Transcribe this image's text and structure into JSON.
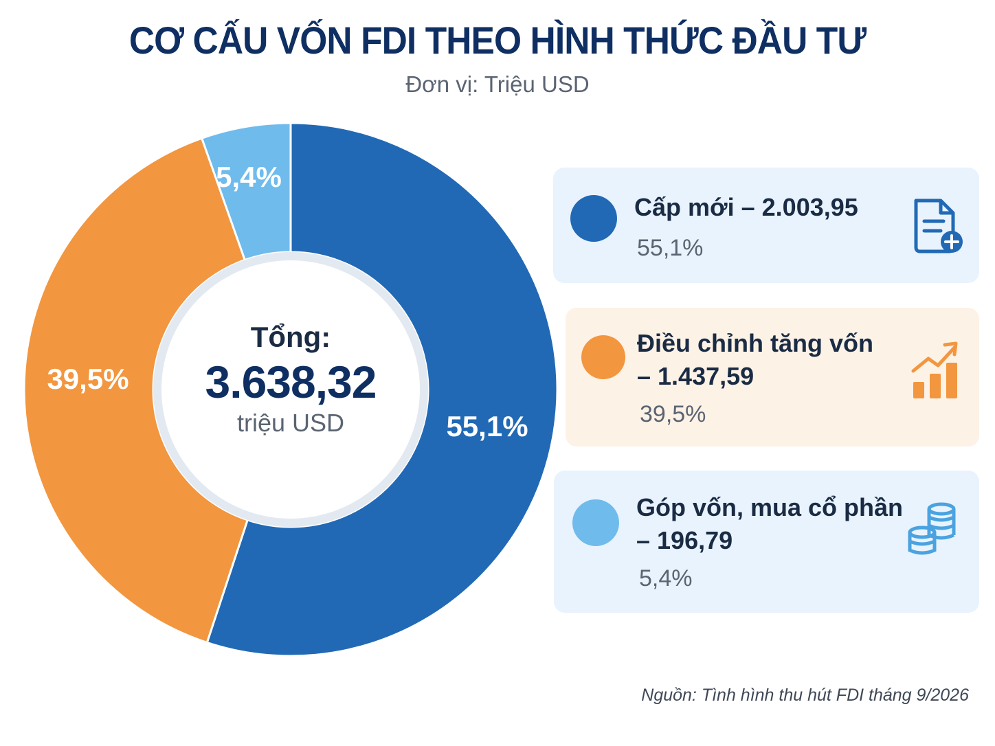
{
  "title": "CƠ CẤU VỐN FDI THEO HÌNH THỨC ĐẦU TƯ",
  "subtitle": "Đơn vị: Triệu USD",
  "center": {
    "label": "Tổng:",
    "value": "3.638,32",
    "unit": "triệu USD"
  },
  "chart_data": {
    "type": "pie",
    "variant": "donut",
    "title": "CƠ CẤU VỐN FDI THEO HÌNH THỨC ĐẦU TƯ",
    "unit": "Triệu USD",
    "total": 3638.32,
    "slices": [
      {
        "name": "Cấp mới",
        "value": 2003.95,
        "percent": 55.1,
        "percent_label": "55,1%",
        "color": "#2169b5"
      },
      {
        "name": "Điều chỉnh tăng vốn",
        "value": 1437.59,
        "percent": 39.5,
        "percent_label": "39,5%",
        "color": "#f2963f"
      },
      {
        "name": "Góp vốn, mua cổ phần",
        "value": 196.79,
        "percent": 5.4,
        "percent_label": "5,4%",
        "color": "#6fbbec"
      }
    ]
  },
  "legend": {
    "items": [
      {
        "line1": "Cấp mới – 2.003,95",
        "line2": "",
        "percent": "55,1%",
        "icon": "document-plus-icon",
        "bg": "#e9f3fd",
        "color": "#2169b5"
      },
      {
        "line1": "Điều chỉnh tăng vốn",
        "line2": "– 1.437,59",
        "percent": "39,5%",
        "icon": "growth-chart-icon",
        "bg": "#fdf2e6",
        "color": "#f2963f"
      },
      {
        "line1": "Góp vốn, mua cổ phần",
        "line2": "– 196,79",
        "percent": "5,4%",
        "icon": "coins-icon",
        "bg": "#e9f3fd",
        "color": "#6fbbec"
      }
    ]
  },
  "source": "Nguồn: Tình hình thu hút FDI tháng 9/2026"
}
